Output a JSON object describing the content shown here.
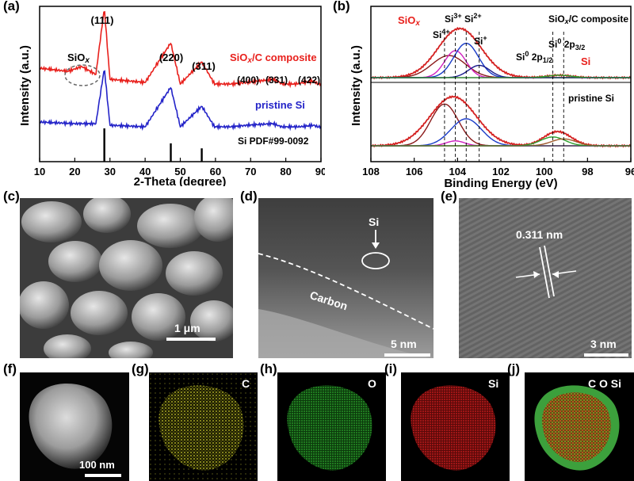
{
  "panels": {
    "a": "(a)",
    "b": "(b)",
    "c": "(c)",
    "d": "(d)",
    "e": "(e)",
    "f": "(f)",
    "g": "(g)",
    "h": "(h)",
    "i": "(i)",
    "j": "(j)"
  },
  "chart_data": [
    {
      "type": "line",
      "xlabel": "2-Theta (degree)",
      "ylabel": "Intensity (a.u.)",
      "xlim": [
        10,
        90
      ],
      "x_ticks": [
        "10",
        "20",
        "30",
        "40",
        "50",
        "60",
        "70",
        "80",
        "90"
      ],
      "series": [
        {
          "name": "SiOx/C composite",
          "color": "#e8201c",
          "x": [
            10,
            18,
            22,
            26,
            28.4,
            30,
            40,
            47.3,
            50,
            56.1,
            60,
            69.1,
            76.4,
            80,
            88,
            90
          ],
          "y": [
            0.62,
            0.6,
            0.63,
            0.58,
            1.0,
            0.55,
            0.53,
            0.78,
            0.52,
            0.66,
            0.51,
            0.53,
            0.55,
            0.51,
            0.54,
            0.5
          ]
        },
        {
          "name": "pristine Si",
          "color": "#2323c8",
          "x": [
            10,
            20,
            26,
            28.4,
            30,
            40,
            47.3,
            50,
            56.1,
            60,
            69.1,
            76.4,
            80,
            88,
            90
          ],
          "y": [
            0.28,
            0.27,
            0.27,
            0.62,
            0.26,
            0.25,
            0.5,
            0.25,
            0.38,
            0.24,
            0.26,
            0.27,
            0.24,
            0.26,
            0.24
          ]
        }
      ],
      "reference": {
        "label": "Si PDF#99-0092",
        "x": [
          28.4,
          47.3,
          56.1
        ],
        "heights": [
          1.0,
          0.55,
          0.4
        ]
      },
      "annotations": [
        {
          "text": "(111)",
          "x": 28.4
        },
        {
          "text": "(220)",
          "x": 47.3
        },
        {
          "text": "(311)",
          "x": 56.1
        },
        {
          "text": "(400)",
          "x": 69.1
        },
        {
          "text": "(331)",
          "x": 76.4
        },
        {
          "text": "(422)",
          "x": 88
        },
        {
          "text": "SiOx",
          "x": 21
        }
      ]
    },
    {
      "type": "line",
      "xlabel": "Binding Energy (eV)",
      "ylabel": "Intensity (a.u.)",
      "xlim": [
        108,
        96
      ],
      "x_ticks": [
        "108",
        "106",
        "104",
        "102",
        "100",
        "98",
        "96"
      ],
      "subplots": [
        {
          "label": "SiOx/C composite",
          "series": [
            {
              "name": "envelope",
              "color": "#d42020",
              "center": 103.9,
              "width": 1.4,
              "amp": 1.0
            },
            {
              "name": "Si4+",
              "color": "#8b1a1a",
              "center": 104.4,
              "width": 1.1,
              "amp": 0.45
            },
            {
              "name": "Si3+",
              "color": "#d020c0",
              "center": 104.1,
              "width": 0.7,
              "amp": 0.55
            },
            {
              "name": "Si2+",
              "color": "#1a3cc8",
              "center": 103.6,
              "width": 0.8,
              "amp": 0.7
            },
            {
              "name": "Si+",
              "color": "#1a1a8c",
              "center": 103.0,
              "width": 0.7,
              "amp": 0.25
            },
            {
              "name": "Si0",
              "color": "#2ca02c",
              "center": 99.3,
              "width": 0.8,
              "amp": 0.05
            }
          ]
        },
        {
          "label": "pristine Si",
          "series": [
            {
              "name": "envelope",
              "color": "#d42020",
              "center": 104.2,
              "width": 1.5,
              "amp": 1.0
            },
            {
              "name": "Si4+",
              "color": "#8b1a1a",
              "center": 104.6,
              "width": 0.9,
              "amp": 0.85
            },
            {
              "name": "Si2+",
              "color": "#1a3cc8",
              "center": 103.6,
              "width": 1.0,
              "amp": 0.55
            },
            {
              "name": "Si3+",
              "color": "#d020c0",
              "center": 104.1,
              "width": 0.6,
              "amp": 0.1
            },
            {
              "name": "Si0 2p1/2",
              "color": "#2ca02c",
              "center": 99.6,
              "width": 0.8,
              "amp": 0.18
            },
            {
              "name": "Si0 2p3/2",
              "color": "#a05a2c",
              "center": 99.1,
              "width": 0.8,
              "amp": 0.14
            }
          ]
        }
      ],
      "dashed_lines_at": [
        104.6,
        104.1,
        103.6,
        103.0,
        99.6,
        99.1
      ]
    }
  ],
  "a_labels": {
    "peak111": "(111)",
    "peak220": "(220)",
    "peak311": "(311)",
    "peak400": "(400)",
    "peak331": "(331)",
    "peak422": "(422)",
    "siox": "SiO",
    "siox_sub": "x",
    "composite": "SiO",
    "composite_sub": "x",
    "composite_rest": "/C composite",
    "pristine": "pristine Si",
    "pdf": "Si PDF#99-0092",
    "xlabel": "2-Theta (degree)",
    "ylabel": "Intensity (a.u.)"
  },
  "b_labels": {
    "siox": "SiO",
    "siox_sub": "x",
    "si4": "Si",
    "si4_sup": "4+",
    "si3": "Si",
    "si3_sup": "3+",
    "si2": "Si",
    "si2_sup": "2+",
    "si1": "Si",
    "si1_sup": "+",
    "composite": "SiO",
    "composite_sub": "x",
    "composite_rest": "/C composite",
    "si0a_pre": "Si",
    "si0a_sup": "0",
    "si0a_mid": " 2p",
    "si0a_sub": "1/2",
    "si0b_pre": "Si",
    "si0b_sup": "0",
    "si0b_mid": " 2p",
    "si0b_sub": "3/2",
    "si_red": "Si",
    "pristine": "pristine Si",
    "xlabel": "Binding Energy (eV)",
    "ylabel": "Intensity (a.u.)"
  },
  "images": {
    "c_scale": "1 μm",
    "d_si": "Si",
    "d_carbon": "Carbon",
    "d_scale": "5 nm",
    "e_spacing": "0.311 nm",
    "e_scale": "3 nm",
    "f_scale": "100 nm",
    "g_el": "C",
    "h_el": "O",
    "i_el": "Si",
    "j_el": "C O Si"
  },
  "colors": {
    "red": "#e8201c",
    "blue": "#2323c8"
  }
}
